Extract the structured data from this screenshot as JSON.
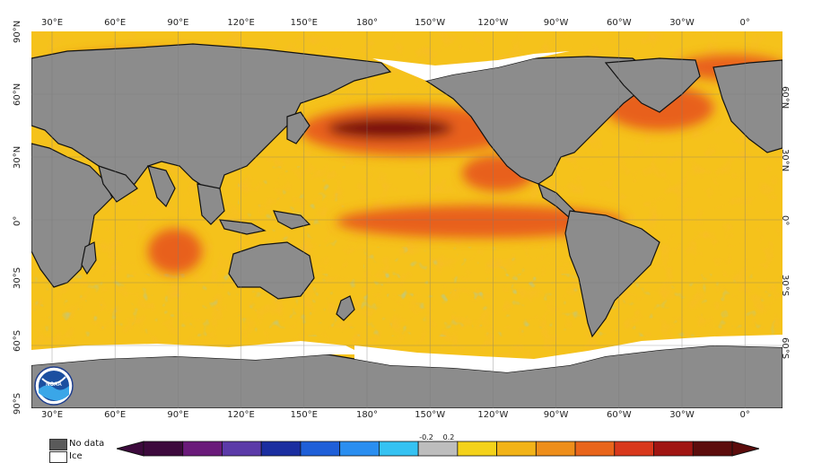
{
  "map": {
    "lon_ticks_top": [
      "30°E",
      "60°E",
      "90°E",
      "120°E",
      "150°E",
      "180°",
      "150°W",
      "120°W",
      "90°W",
      "60°W",
      "30°W",
      "0°"
    ],
    "lon_ticks_bottom": [
      "30°E",
      "60°E",
      "90°E",
      "120°E",
      "150°E",
      "180°",
      "150°W",
      "120°W",
      "90°W",
      "60°W",
      "30°W",
      "0°"
    ],
    "lat_ticks_left": [
      "90°N",
      "60°N",
      "30°N",
      "0°",
      "30°S",
      "60°S",
      "90°S"
    ],
    "lat_ticks_right": [
      "60°N",
      "30°N",
      "0°",
      "30°S",
      "60°S"
    ],
    "colors": {
      "land": "#8c8c8c",
      "ice": "#ffffff",
      "ocean_warm": "#f5c21b",
      "ocean_hot": "#e8601c",
      "ocean_extreme": "#7a0f0f",
      "ocean_cool": "#2fa7e8"
    }
  },
  "legend": {
    "no_data_label": "No data",
    "ice_label": "Ice",
    "no_data_color": "#5a5a5a",
    "ice_color": "#ffffff"
  },
  "colorbar": {
    "label_neg": "-0.2",
    "label_pos": "0.2",
    "colors": [
      "#3d0a3d",
      "#6a1a7a",
      "#5b3aa8",
      "#1b2ea0",
      "#1f5fd8",
      "#2a8ef0",
      "#35c2f2",
      "#bdbdbd",
      "#f4d21a",
      "#f2b318",
      "#ee8e1a",
      "#e9651b",
      "#d8381c",
      "#a01512",
      "#5c0c0c"
    ]
  },
  "logo": {
    "text": "NOAA"
  }
}
